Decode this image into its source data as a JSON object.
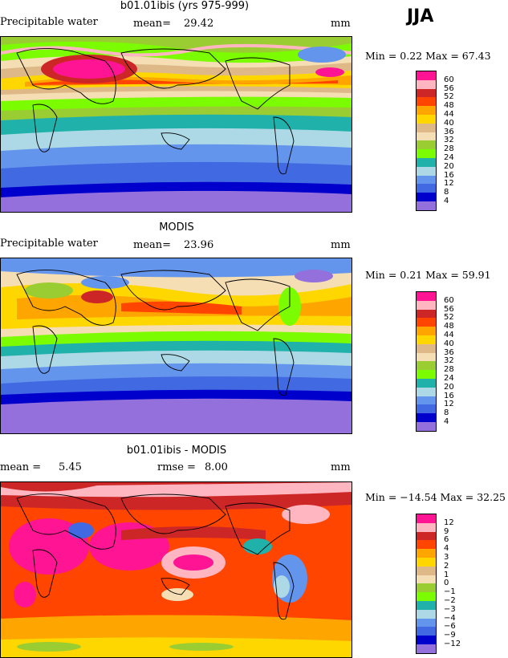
{
  "season": "JJA",
  "units": "mm",
  "panels": [
    {
      "title": "b01.01ibis (yrs 975-999)",
      "field": "Precipitable water",
      "stat1_label": "mean=",
      "stat1_value": "29.42",
      "stat2_label": "",
      "stat2_value": "",
      "units": "mm",
      "minmax": "Min =    0.22 Max =  67.43",
      "levels": [
        "60",
        "56",
        "52",
        "48",
        "44",
        "40",
        "36",
        "32",
        "28",
        "24",
        "20",
        "16",
        "12",
        "8",
        "4"
      ],
      "colors": [
        "#ff1493",
        "#ffb6c1",
        "#cd2626",
        "#ff4500",
        "#ffa500",
        "#ffd700",
        "#deb887",
        "#f5deb3",
        "#9acd32",
        "#7cfc00",
        "#20b2aa",
        "#add8e6",
        "#6495ed",
        "#4169e1",
        "#0000cd",
        "#9370db"
      ]
    },
    {
      "title": "MODIS",
      "field": "Precipitable water",
      "stat1_label": "mean=",
      "stat1_value": "23.96",
      "stat2_label": "",
      "stat2_value": "",
      "units": "mm",
      "minmax": "Min =    0.21 Max =  59.91",
      "levels": [
        "60",
        "56",
        "52",
        "48",
        "44",
        "40",
        "36",
        "32",
        "28",
        "24",
        "20",
        "16",
        "12",
        "8",
        "4"
      ],
      "colors": [
        "#ff1493",
        "#ffb6c1",
        "#cd2626",
        "#ff4500",
        "#ffa500",
        "#ffd700",
        "#deb887",
        "#f5deb3",
        "#9acd32",
        "#7cfc00",
        "#20b2aa",
        "#add8e6",
        "#6495ed",
        "#4169e1",
        "#0000cd",
        "#9370db"
      ]
    },
    {
      "title": "b01.01ibis - MODIS",
      "field": "",
      "stat1_label": "mean =",
      "stat1_value": "5.45",
      "stat2_label": "rmse =",
      "stat2_value": "8.00",
      "units": "mm",
      "minmax": "Min = −14.54 Max =  32.25",
      "levels": [
        "12",
        "9",
        "6",
        "4",
        "3",
        "2",
        "1",
        "0",
        "−1",
        "−2",
        "−3",
        "−4",
        "−6",
        "−9",
        "−12"
      ],
      "colors": [
        "#ff1493",
        "#ffb6c1",
        "#cd2626",
        "#ff4500",
        "#ffa500",
        "#ffd700",
        "#deb887",
        "#f5deb3",
        "#9acd32",
        "#7cfc00",
        "#20b2aa",
        "#add8e6",
        "#6495ed",
        "#4169e1",
        "#0000cd",
        "#9370db"
      ]
    }
  ],
  "chart_data": [
    {
      "type": "heatmap",
      "title": "b01.01ibis (yrs 975-999)",
      "subtitle": "Precipitable water",
      "units": "mm",
      "mean": 29.42,
      "min": 0.22,
      "max": 67.43,
      "contour_levels": [
        4,
        8,
        12,
        16,
        20,
        24,
        28,
        32,
        36,
        40,
        44,
        48,
        52,
        56,
        60
      ]
    },
    {
      "type": "heatmap",
      "title": "MODIS",
      "subtitle": "Precipitable water",
      "units": "mm",
      "mean": 23.96,
      "min": 0.21,
      "max": 59.91,
      "contour_levels": [
        4,
        8,
        12,
        16,
        20,
        24,
        28,
        32,
        36,
        40,
        44,
        48,
        52,
        56,
        60
      ]
    },
    {
      "type": "heatmap",
      "title": "b01.01ibis - MODIS",
      "units": "mm",
      "mean": 5.45,
      "rmse": 8.0,
      "min": -14.54,
      "max": 32.25,
      "contour_levels": [
        -12,
        -9,
        -6,
        -4,
        -3,
        -2,
        -1,
        0,
        1,
        2,
        3,
        4,
        6,
        9,
        12
      ]
    }
  ]
}
